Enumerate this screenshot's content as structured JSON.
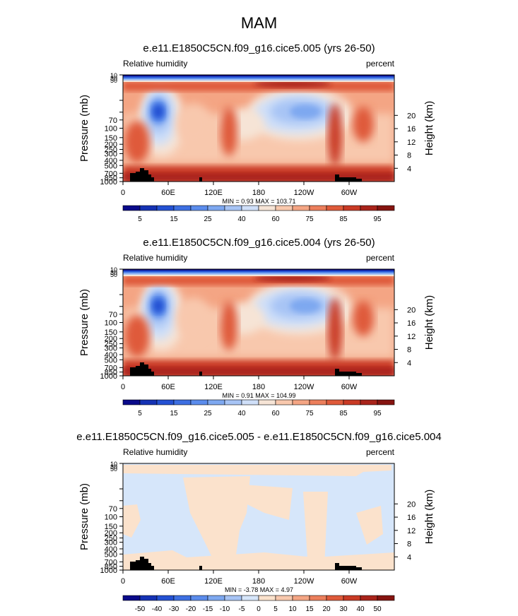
{
  "page_title": "MAM",
  "chart_data": [
    {
      "type": "heatmap",
      "title": "e.e11.E1850C5CN.f09_g16.cice5.005 (yrs 26-50)",
      "variable": "Relative humidity",
      "units": "percent",
      "ylabel": "Pressure (mb)",
      "ylabel_right": "Height (km)",
      "x_ticks": [
        "0",
        "60E",
        "120E",
        "180",
        "120W",
        "60W"
      ],
      "y_ticks": [
        "10",
        "30",
        "50",
        "70",
        "100",
        "150",
        "200",
        "250",
        "300",
        "400",
        "500",
        "700",
        "850",
        "1000"
      ],
      "y_ticks_right": [
        "20",
        "16",
        "12",
        "8",
        "4"
      ],
      "ylim": [
        1000,
        10
      ],
      "stats": "MIN =   0.93  MAX = 103.71",
      "min": 0.93,
      "max": 103.71,
      "colorbar_labels": [
        "5",
        "15",
        "25",
        "40",
        "60",
        "75",
        "85",
        "95"
      ]
    },
    {
      "type": "heatmap",
      "title": "e.e11.E1850C5CN.f09_g16.cice5.004 (yrs 26-50)",
      "variable": "Relative humidity",
      "units": "percent",
      "ylabel": "Pressure (mb)",
      "ylabel_right": "Height (km)",
      "x_ticks": [
        "0",
        "60E",
        "120E",
        "180",
        "120W",
        "60W"
      ],
      "y_ticks": [
        "10",
        "30",
        "50",
        "70",
        "100",
        "150",
        "200",
        "250",
        "300",
        "400",
        "500",
        "700",
        "850",
        "1000"
      ],
      "y_ticks_right": [
        "20",
        "16",
        "12",
        "8",
        "4"
      ],
      "ylim": [
        1000,
        10
      ],
      "stats": "MIN =   0.91  MAX = 104.99",
      "min": 0.91,
      "max": 104.99,
      "colorbar_labels": [
        "5",
        "15",
        "25",
        "40",
        "60",
        "75",
        "85",
        "95"
      ]
    },
    {
      "type": "heatmap",
      "title": "e.e11.E1850C5CN.f09_g16.cice5.005 - e.e11.E1850C5CN.f09_g16.cice5.004",
      "variable": "Relative humidity",
      "units": "percent",
      "ylabel": "Pressure (mb)",
      "ylabel_right": "Height (km)",
      "x_ticks": [
        "0",
        "60E",
        "120E",
        "180",
        "120W",
        "60W"
      ],
      "y_ticks": [
        "10",
        "30",
        "50",
        "70",
        "100",
        "150",
        "200",
        "250",
        "300",
        "400",
        "500",
        "700",
        "850",
        "1000"
      ],
      "y_ticks_right": [
        "20",
        "16",
        "12",
        "8",
        "4"
      ],
      "ylim": [
        1000,
        10
      ],
      "stats": "MIN =  -3.78  MAX =   4.97",
      "min": -3.78,
      "max": 4.97,
      "colorbar_labels": [
        "-50",
        "-40",
        "-30",
        "-20",
        "-15",
        "-10",
        "-5",
        "0",
        "5",
        "10",
        "15",
        "20",
        "30",
        "40",
        "50"
      ]
    }
  ],
  "colors": {
    "rh_scale": [
      "#0a0a8a",
      "#1532b4",
      "#2451d3",
      "#3d6fe2",
      "#5b8cec",
      "#7ea8f0",
      "#a7c4f5",
      "#cfdff8",
      "#f6e4d6",
      "#f8c8ad",
      "#f4a584",
      "#ec7f5c",
      "#df5a3a",
      "#c93a25",
      "#a9241b",
      "#861410"
    ],
    "diff_scale": [
      "#0a0a8a",
      "#1532b4",
      "#2451d3",
      "#3d6fe2",
      "#5b8cec",
      "#7ea8f0",
      "#a7c4f5",
      "#d6e6fa",
      "#fbe2cc",
      "#f8c8ad",
      "#f4a584",
      "#ec7f5c",
      "#df5a3a",
      "#c93a25",
      "#a9241b",
      "#861410"
    ],
    "topography": "#000000"
  }
}
